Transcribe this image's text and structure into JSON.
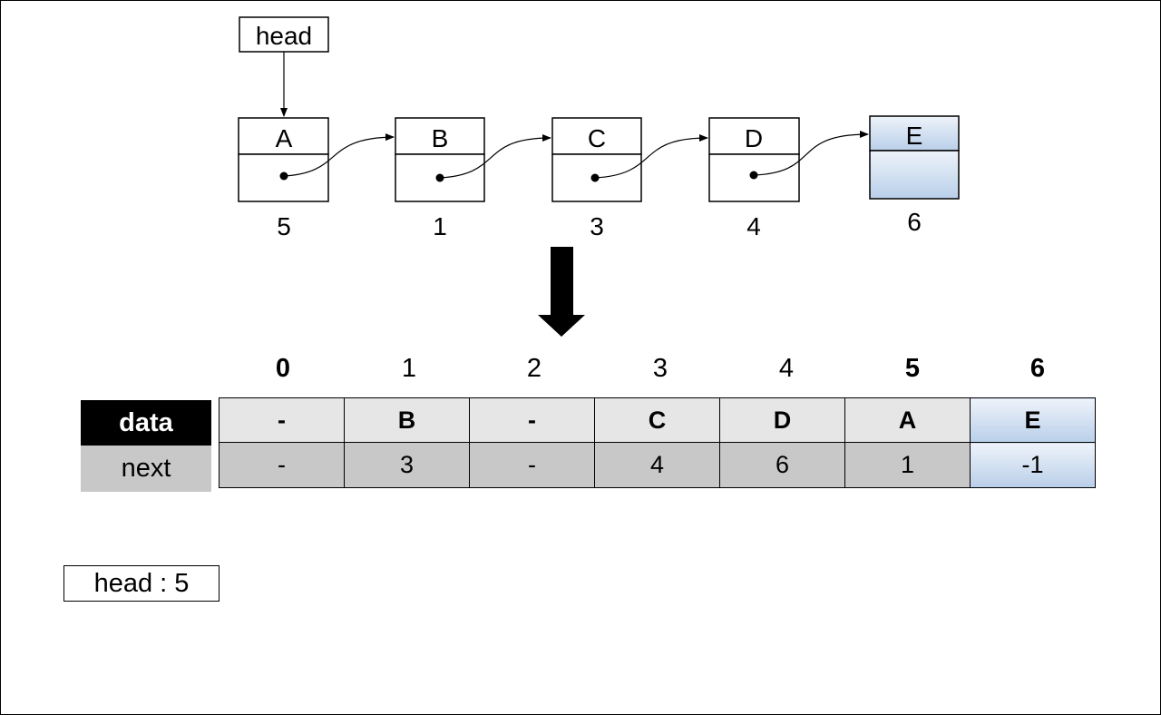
{
  "linked_list": {
    "head_label": "head",
    "nodes": [
      {
        "data": "A",
        "address": "5",
        "highlight": false
      },
      {
        "data": "B",
        "address": "1",
        "highlight": false
      },
      {
        "data": "C",
        "address": "3",
        "highlight": false
      },
      {
        "data": "D",
        "address": "4",
        "highlight": false
      },
      {
        "data": "E",
        "address": "6",
        "highlight": true
      }
    ]
  },
  "array": {
    "indices": [
      "0",
      "1",
      "2",
      "3",
      "4",
      "5",
      "6"
    ],
    "row_labels": {
      "data": "data",
      "next": "next"
    },
    "data": [
      "-",
      "B",
      "-",
      "C",
      "D",
      "A",
      "E"
    ],
    "next": [
      "-",
      "3",
      "-",
      "4",
      "6",
      "1",
      "-1"
    ]
  },
  "head_value_text": "head : 5",
  "colors": {
    "highlight_top": "#eef3fa",
    "highlight_bottom": "#b9cfe9",
    "data_row_bg": "#e6e6e6",
    "next_row_bg": "#c8c8c8"
  }
}
